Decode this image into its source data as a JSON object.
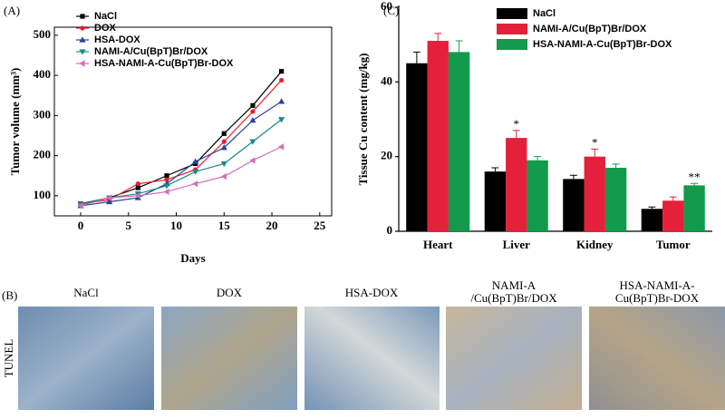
{
  "chart_data": [
    {
      "type": "line",
      "x_label": "Days",
      "y_label": "Tumor volume (mm³)",
      "x": [
        0,
        3,
        6,
        9,
        12,
        15,
        18,
        21
      ],
      "xlim": [
        -2.75,
        26.25
      ],
      "xticks": [
        0,
        5,
        10,
        15,
        20,
        25
      ],
      "ylim": [
        50,
        520
      ],
      "yticks": [
        100,
        200,
        300,
        400,
        500
      ],
      "legend": "upper left",
      "series": [
        {
          "name": "NaCl",
          "color": "#000000",
          "marker": "square",
          "values": [
            80,
            95,
            120,
            150,
            180,
            255,
            325,
            410
          ]
        },
        {
          "name": "DOX",
          "color": "#e8202a",
          "marker": "circle",
          "values": [
            80,
            90,
            130,
            140,
            165,
            235,
            310,
            388
          ]
        },
        {
          "name": "HSA-DOX",
          "color": "#2b3f9e",
          "marker": "triangle-up",
          "values": [
            75,
            85,
            95,
            130,
            185,
            220,
            288,
            335
          ]
        },
        {
          "name": "NAMI-A/Cu(BpT)Br/DOX",
          "color": "#1a8a8a",
          "marker": "triangle-down",
          "values": [
            78,
            95,
            105,
            125,
            160,
            180,
            235,
            290
          ]
        },
        {
          "name": "HSA-NAMI-A-Cu(BpT)Br-DOX",
          "color": "#d070b8",
          "marker": "triangle-left",
          "values": [
            75,
            95,
            100,
            110,
            130,
            148,
            188,
            222
          ]
        }
      ]
    },
    {
      "type": "bar",
      "y_label": "Tissue Cu content (mg/kg)",
      "categories": [
        "Heart",
        "Liver",
        "Kidney",
        "Tumor"
      ],
      "ylim": [
        0,
        60
      ],
      "yticks": [
        0,
        20,
        40,
        60
      ],
      "legend": "upper right",
      "series": [
        {
          "name": "NaCl",
          "color": "#000000",
          "values": [
            45,
            16,
            14,
            6
          ],
          "errors": [
            3,
            1,
            1,
            0.5
          ]
        },
        {
          "name": "NAMI-A/Cu(BpT)Br/DOX",
          "color": "#e5203a",
          "values": [
            51,
            25,
            20,
            8.2
          ],
          "errors": [
            2,
            2,
            2,
            1
          ],
          "annotations": [
            null,
            "*",
            "*",
            null
          ]
        },
        {
          "name": "HSA-NAMI-A-Cu(BpT)Br-DOX",
          "color": "#139a4c",
          "values": [
            48,
            19,
            17,
            12.3
          ],
          "errors": [
            3,
            1,
            1,
            0.5
          ],
          "annotations": [
            null,
            null,
            null,
            "**"
          ]
        }
      ]
    }
  ],
  "panel_labels": [
    "(A)",
    "(B)",
    "(C)"
  ],
  "images": {
    "row_label": "TUNEL",
    "captions": [
      [
        "NaCl"
      ],
      [
        "DOX"
      ],
      [
        "HSA-DOX"
      ],
      [
        "NAMI-A",
        "/Cu(BpT)Br/DOX"
      ],
      [
        "HSA-NAMI-A-",
        "Cu(BpT)Br-DOX"
      ]
    ]
  }
}
